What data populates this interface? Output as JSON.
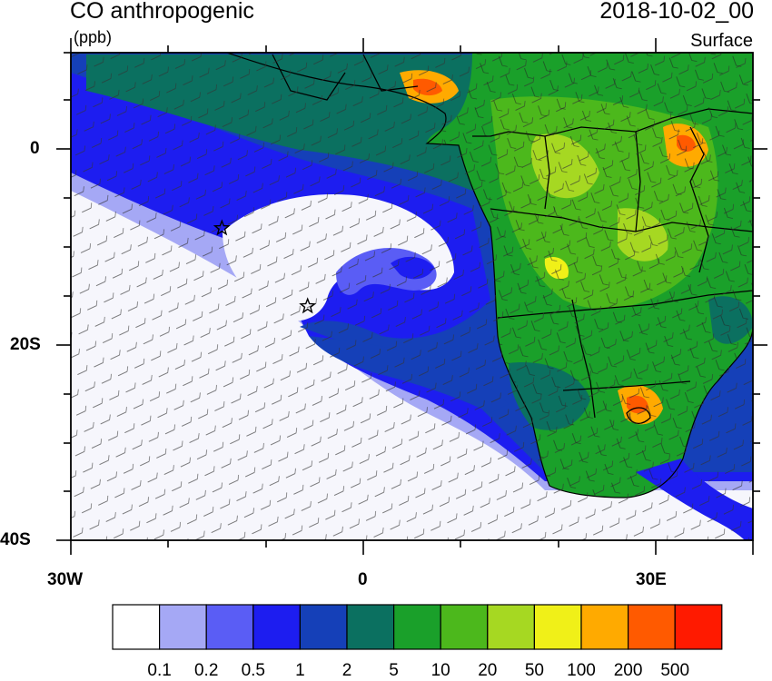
{
  "header": {
    "title": "CO anthropogenic",
    "units": "(ppb)",
    "timestamp": "2018-10-02_00",
    "level": "Surface"
  },
  "axes": {
    "x_tick_labels": [
      "30W",
      "0",
      "30E"
    ],
    "y_tick_labels": [
      "0",
      "20S",
      "40S"
    ]
  },
  "markers": [
    {
      "name": "star-marker-1",
      "lon": -14.5,
      "lat": -8.0
    },
    {
      "name": "star-marker-2",
      "lon": -5.7,
      "lat": -16.0
    }
  ],
  "colorbar": {
    "labels": [
      "0.1",
      "0.2",
      "0.5",
      "1",
      "2",
      "5",
      "10",
      "20",
      "50",
      "100",
      "200",
      "500"
    ],
    "colors": [
      "#ffffff",
      "#a5a8f5",
      "#5a5df5",
      "#1d1df0",
      "#1540b8",
      "#0b7060",
      "#1aa02a",
      "#4cb81c",
      "#a6d822",
      "#f0f018",
      "#ffaa00",
      "#ff5a00",
      "#ff1a00"
    ]
  },
  "map_extent": {
    "lon_min": -30,
    "lon_max": 40,
    "lat_min": -40,
    "lat_max": 10
  }
}
